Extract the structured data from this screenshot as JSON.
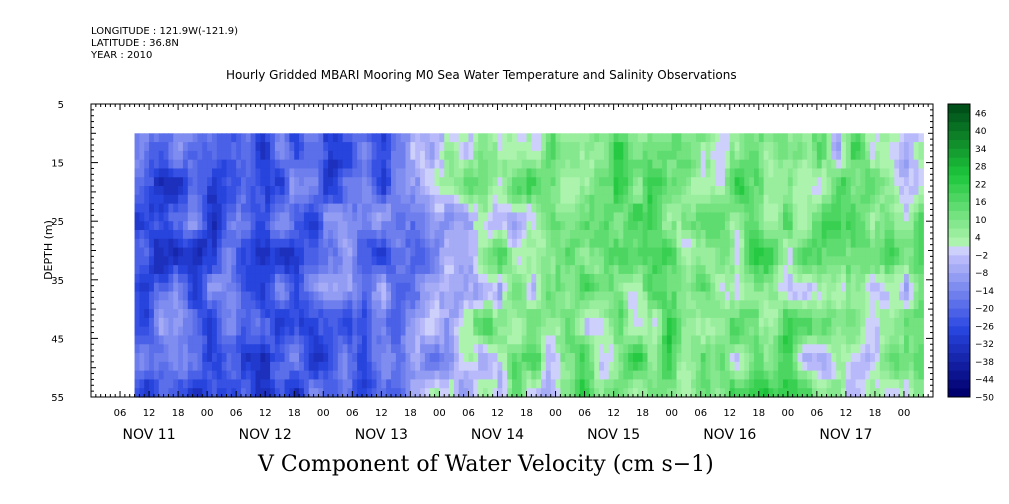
{
  "header": {
    "longitude": "LONGITUDE : 121.9W(-121.9)",
    "latitude": "LATITUDE : 36.8N",
    "year": "YEAR : 2010"
  },
  "chart_data": {
    "type": "heatmap",
    "title": "Hourly Gridded MBARI Mooring M0 Sea Water Temperature and Salinity Observations",
    "xlabel": "",
    "ylabel": "DEPTH (m)",
    "bottom_title": "V Component of Water Velocity (cm s−1)",
    "y_ticks": [
      "5",
      "15",
      "25",
      "35",
      "45",
      "55"
    ],
    "ylim": [
      5,
      55
    ],
    "y_inverted": true,
    "data_depth_range": [
      10,
      55
    ],
    "x_hour_labels": [
      "06",
      "12",
      "18",
      "00",
      "06",
      "12",
      "18",
      "00",
      "06",
      "12",
      "18",
      "00",
      "06",
      "12",
      "18",
      "00",
      "06",
      "12",
      "18",
      "00",
      "06",
      "12",
      "18",
      "00",
      "06",
      "12",
      "18",
      "00"
    ],
    "x_day_labels": [
      "NOV 11",
      "NOV 12",
      "NOV 13",
      "NOV 14",
      "NOV 15",
      "NOV 16",
      "NOV 17"
    ],
    "data_time_range_hours": [
      9,
      172
    ],
    "colorbar": {
      "labels": [
        "46",
        "40",
        "34",
        "28",
        "22",
        "16",
        "10",
        "4",
        "−2",
        "−8",
        "−14",
        "−20",
        "−26",
        "−32",
        "−38",
        "−44",
        "−50"
      ],
      "min": -50,
      "max": 49,
      "step": 3
    },
    "day_mean_v": [
      -22,
      -24,
      -18,
      6,
      10,
      12,
      6
    ],
    "grid": false,
    "legend": "right"
  }
}
